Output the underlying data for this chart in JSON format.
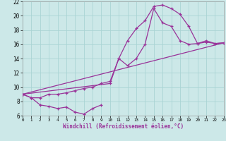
{
  "bg_color": "#cce8e8",
  "grid_color": "#aad4d4",
  "line_color": "#993399",
  "xlim": [
    0,
    23
  ],
  "ylim": [
    6,
    22
  ],
  "xtick_vals": [
    0,
    1,
    2,
    3,
    4,
    5,
    6,
    7,
    8,
    9,
    10,
    11,
    12,
    13,
    14,
    15,
    16,
    17,
    18,
    19,
    20,
    21,
    22,
    23
  ],
  "ytick_vals": [
    6,
    8,
    10,
    12,
    14,
    16,
    18,
    20,
    22
  ],
  "xlabel": "Windchill (Refroidissement éolien,°C)",
  "line1_x": [
    0,
    1,
    2,
    3,
    4,
    5,
    6,
    7,
    8,
    9
  ],
  "line1_y": [
    9.0,
    8.5,
    7.5,
    7.3,
    7.0,
    7.2,
    6.5,
    6.2,
    7.0,
    7.5
  ],
  "line2_x": [
    0,
    1,
    2,
    3,
    4,
    5,
    6,
    7,
    8,
    9,
    10,
    11,
    12,
    13,
    14,
    15,
    16,
    17,
    18,
    19,
    20,
    21,
    22,
    23
  ],
  "line2_y": [
    9.0,
    8.5,
    8.5,
    9.0,
    9.0,
    9.2,
    9.5,
    9.8,
    10.0,
    10.5,
    10.8,
    14.0,
    16.5,
    18.2,
    19.3,
    21.3,
    21.5,
    21.0,
    20.2,
    18.5,
    16.1,
    16.5,
    16.1,
    16.2
  ],
  "line3_x": [
    0,
    10,
    11,
    12,
    13,
    14,
    15,
    16,
    17,
    18,
    19,
    20,
    21,
    22,
    23
  ],
  "line3_y": [
    9.0,
    10.5,
    14.0,
    13.0,
    14.0,
    16.0,
    21.0,
    19.0,
    18.5,
    16.5,
    16.0,
    16.1,
    16.3,
    16.1,
    16.2
  ],
  "line4_x": [
    0,
    23
  ],
  "line4_y": [
    9.0,
    16.2
  ]
}
